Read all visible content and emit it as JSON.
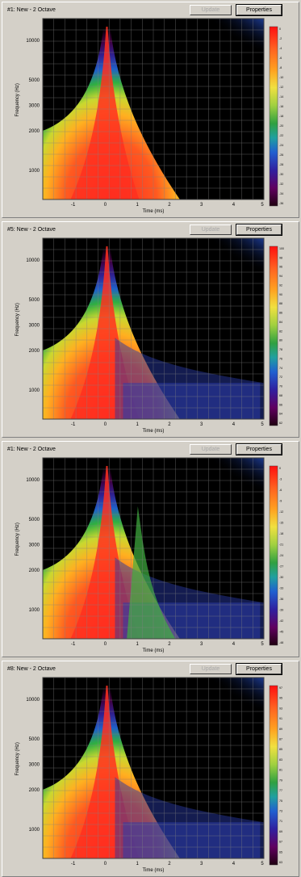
{
  "panels": [
    {
      "title": "#1: New - 2 Octave",
      "update_label": "Update",
      "properties_label": "Properties",
      "ylabel": "Frequency (Hz)",
      "xlabel": "Time (ms)",
      "ytick_labels": [
        "10000",
        "5000",
        "3000",
        "2000",
        "1000"
      ],
      "xtick_labels": [
        "-1",
        "0",
        "1",
        "2",
        "3",
        "4",
        "5"
      ],
      "colorbar_labels": [
        "0",
        "-2",
        "-4",
        "-6",
        "-8",
        "-10",
        "-12",
        "-14",
        "-16",
        "-18",
        "-20",
        "-22",
        "-24",
        "-26",
        "-28",
        "-30",
        "-32",
        "-34",
        "-36"
      ],
      "variant": 0
    },
    {
      "title": "#5: New - 2 Octave",
      "update_label": "Update",
      "properties_label": "Properties",
      "ylabel": "Frequency (Hz)",
      "xlabel": "Time (ms)",
      "ytick_labels": [
        "10000",
        "5000",
        "3000",
        "2000",
        "1000"
      ],
      "xtick_labels": [
        "-1",
        "0",
        "1",
        "2",
        "3",
        "4",
        "5"
      ],
      "colorbar_labels": [
        "100",
        "98",
        "96",
        "94",
        "92",
        "90",
        "88",
        "86",
        "84",
        "82",
        "80",
        "78",
        "76",
        "74",
        "72",
        "70",
        "68",
        "66",
        "64",
        "62"
      ],
      "variant": 1
    },
    {
      "title": "#1: New - 2 Octave",
      "update_label": "Update",
      "properties_label": "Properties",
      "ylabel": "Frequency (Hz)",
      "xlabel": "Time (ms)",
      "ytick_labels": [
        "10000",
        "5000",
        "3000",
        "2000",
        "1000"
      ],
      "xtick_labels": [
        "-1",
        "0",
        "1",
        "2",
        "3",
        "4",
        "5"
      ],
      "colorbar_labels": [
        "0",
        "-3",
        "-6",
        "-9",
        "-12",
        "-15",
        "-18",
        "-21",
        "-24",
        "-27",
        "-30",
        "-33",
        "-36",
        "-39",
        "-42",
        "-45",
        "-48"
      ],
      "variant": 2
    },
    {
      "title": "#8: New - 2 Octave",
      "update_label": "Update",
      "properties_label": "Properties",
      "ylabel": "Frequency (Hz)",
      "xlabel": "Time (ms)",
      "ytick_labels": [
        "10000",
        "5000",
        "3000",
        "2000",
        "1000"
      ],
      "xtick_labels": [
        "-1",
        "0",
        "1",
        "2",
        "3",
        "4",
        "5"
      ],
      "colorbar_labels": [
        "97",
        "95",
        "93",
        "91",
        "89",
        "87",
        "85",
        "83",
        "81",
        "79",
        "77",
        "75",
        "73",
        "71",
        "69",
        "67",
        "65",
        "63"
      ],
      "variant": 3
    }
  ],
  "colors": {
    "plot_bg": "#000000",
    "grid": "#808080",
    "colorbar_top": "#ff0000",
    "colorbar_bottom": "#200010"
  }
}
